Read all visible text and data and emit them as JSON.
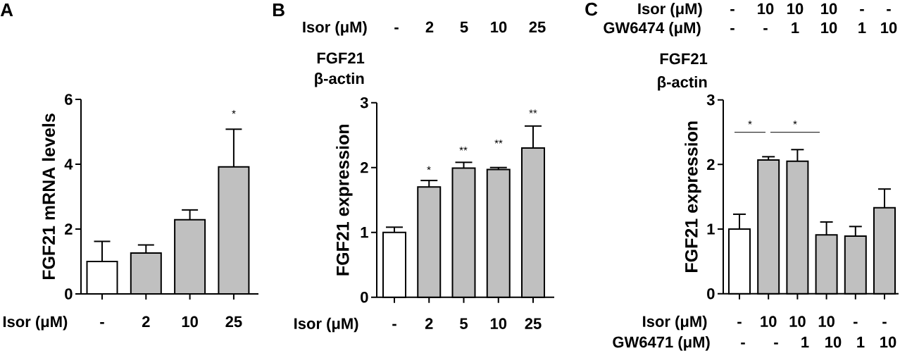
{
  "chart_data": [
    {
      "type": "bar",
      "title": "A",
      "xlabel": "Isor (μM)",
      "ylabel": "FGF21 mRNA levels",
      "categories": [
        "-",
        "2",
        "10",
        "25"
      ],
      "values": [
        1.0,
        1.26,
        2.29,
        3.92
      ],
      "errors": [
        0.62,
        0.25,
        0.3,
        1.16
      ],
      "colors": [
        "#ffffff",
        "#c0c0c0",
        "#c0c0c0",
        "#c0c0c0"
      ],
      "ylim": [
        0,
        6
      ],
      "yticks": [
        0,
        2,
        4,
        6
      ],
      "annotations": [
        "*"
      ]
    },
    {
      "type": "bar",
      "title": "B",
      "xlabel": "Isor (μM)",
      "ylabel": "FGF21 expression",
      "categories": [
        "-",
        "2",
        "5",
        "10",
        "25"
      ],
      "values": [
        1.0,
        1.7,
        1.99,
        1.97,
        2.3
      ],
      "errors": [
        0.08,
        0.1,
        0.09,
        0.03,
        0.34
      ],
      "colors": [
        "#ffffff",
        "#c0c0c0",
        "#c0c0c0",
        "#c0c0c0",
        "#c0c0c0"
      ],
      "ylim": [
        0,
        3
      ],
      "yticks": [
        0,
        1,
        2,
        3
      ],
      "annotations": [
        "*",
        "**",
        "**",
        "**",
        "Isor (μM)",
        "-",
        "2",
        "5",
        "10",
        "25",
        "FGF21",
        "β-actin"
      ]
    },
    {
      "type": "bar",
      "title": "C",
      "xlabel": "Isor (μM)",
      "ylabel": "FGF21 expression",
      "categories": [
        "-",
        "10",
        "10",
        "10",
        "-",
        "-"
      ],
      "values": [
        1.0,
        2.07,
        2.05,
        0.91,
        0.89,
        1.33
      ],
      "errors": [
        0.23,
        0.05,
        0.18,
        0.2,
        0.15,
        0.29
      ],
      "colors": [
        "#ffffff",
        "#c0c0c0",
        "#c0c0c0",
        "#c0c0c0",
        "#c0c0c0",
        "#c0c0c0"
      ],
      "ylim": [
        0,
        3
      ],
      "yticks": [
        0,
        1,
        2,
        3
      ],
      "annotations": [
        "*",
        "*",
        "Isor (μM)",
        "-",
        "10",
        "10",
        "10",
        "-",
        "-",
        "GW6474 (μM)",
        "-",
        "-",
        "1",
        "10",
        "1",
        "10",
        "FGF21",
        "β-actin",
        "GW6471 (μM)",
        "-",
        "-",
        "1",
        "10",
        "1",
        "10"
      ]
    }
  ]
}
